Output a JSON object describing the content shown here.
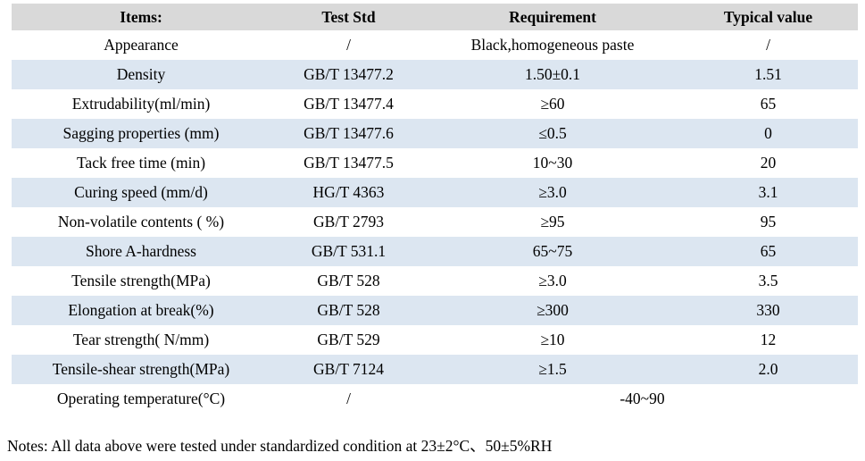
{
  "colors": {
    "header_bg": "#d9d9d9",
    "shaded_row_bg": "#dce6f1",
    "text": "#000000",
    "page_bg": "#ffffff"
  },
  "table": {
    "columns": [
      {
        "key": "items",
        "label": "Items:"
      },
      {
        "key": "test-std",
        "label": "Test Std"
      },
      {
        "key": "requirement",
        "label": "Requirement"
      },
      {
        "key": "typical-value",
        "label": "Typical value"
      }
    ],
    "rows": [
      {
        "item": "Appearance",
        "test_std": "/",
        "requirement": "Black,homogeneous paste",
        "typical": "/",
        "shaded": false,
        "merged": false
      },
      {
        "item": "Density",
        "test_std": "GB/T 13477.2",
        "requirement": "1.50±0.1",
        "typical": "1.51",
        "shaded": true,
        "merged": false
      },
      {
        "item": "Extrudability(ml/min)",
        "test_std": "GB/T 13477.4",
        "requirement": "≥60",
        "typical": "65",
        "shaded": false,
        "merged": false
      },
      {
        "item": "Sagging properties (mm)",
        "test_std": "GB/T 13477.6",
        "requirement": "≤0.5",
        "typical": "0",
        "shaded": true,
        "merged": false
      },
      {
        "item": "Tack free time (min)",
        "test_std": "GB/T 13477.5",
        "requirement": "10~30",
        "typical": "20",
        "shaded": false,
        "merged": false
      },
      {
        "item": "Curing speed (mm/d)",
        "test_std": "HG/T 4363",
        "requirement": "≥3.0",
        "typical": "3.1",
        "shaded": true,
        "merged": false
      },
      {
        "item": "Non-volatile contents ( %)",
        "test_std": "GB/T 2793",
        "requirement": "≥95",
        "typical": "95",
        "shaded": false,
        "merged": false
      },
      {
        "item": "Shore A-hardness",
        "test_std": "GB/T 531.1",
        "requirement": "65~75",
        "typical": "65",
        "shaded": true,
        "merged": false
      },
      {
        "item": "Tensile strength(MPa)",
        "test_std": "GB/T 528",
        "requirement": "≥3.0",
        "typical": "3.5",
        "shaded": false,
        "merged": false
      },
      {
        "item": "Elongation at break(%)",
        "test_std": "GB/T 528",
        "requirement": "≥300",
        "typical": "330",
        "shaded": true,
        "merged": false
      },
      {
        "item": "Tear strength( N/mm)",
        "test_std": "GB/T 529",
        "requirement": "≥10",
        "typical": "12",
        "shaded": false,
        "merged": false
      },
      {
        "item": "Tensile-shear strength(MPa)",
        "test_std": "GB/T 7124",
        "requirement": "≥1.5",
        "typical": "2.0",
        "shaded": true,
        "merged": false
      },
      {
        "item": "Operating temperature(°C)",
        "test_std": "/",
        "requirement": "-40~90",
        "typical": null,
        "shaded": false,
        "merged": true
      }
    ]
  },
  "notes": "Notes: All data above were tested under standardized condition at 23±2°C、50±5%RH"
}
